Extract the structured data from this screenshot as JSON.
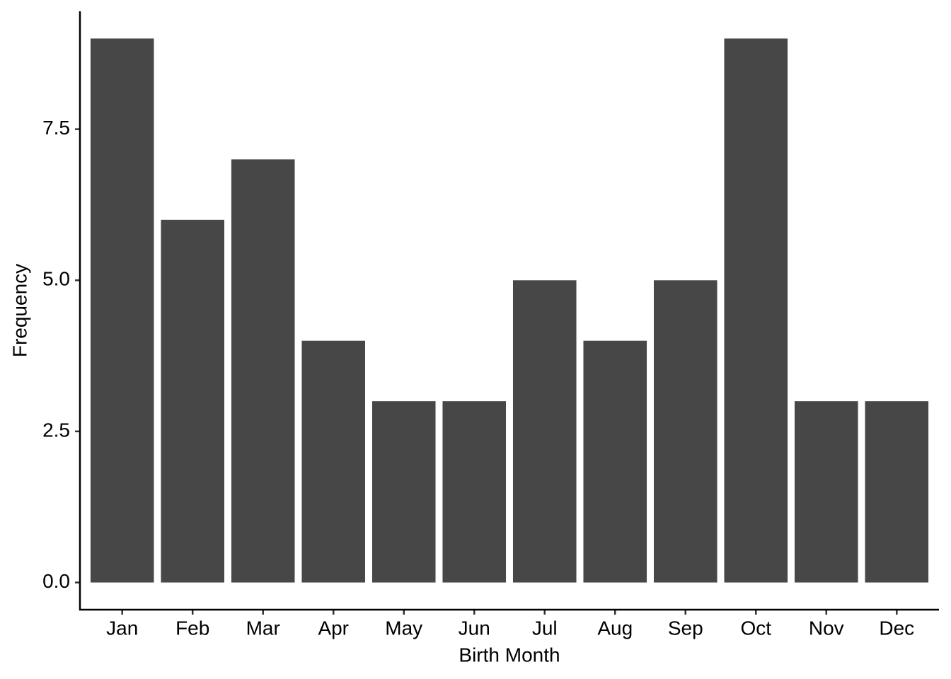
{
  "chart_data": {
    "type": "bar",
    "x_label": "Birth Month",
    "y_label": "Frequency",
    "categories": [
      "Jan",
      "Feb",
      "Mar",
      "Apr",
      "May",
      "Jun",
      "Jul",
      "Aug",
      "Sep",
      "Oct",
      "Nov",
      "Dec"
    ],
    "values": [
      9,
      6,
      7,
      4,
      3,
      3,
      5,
      4,
      5,
      9,
      3,
      3
    ],
    "color": "#474747",
    "ylim": [
      -0.45,
      9.45
    ],
    "yticks": [
      {
        "value": 0,
        "label": "0.0"
      },
      2.5,
      {
        "value": 5,
        "label": "5.0"
      },
      7.5
    ],
    "grid": false
  }
}
